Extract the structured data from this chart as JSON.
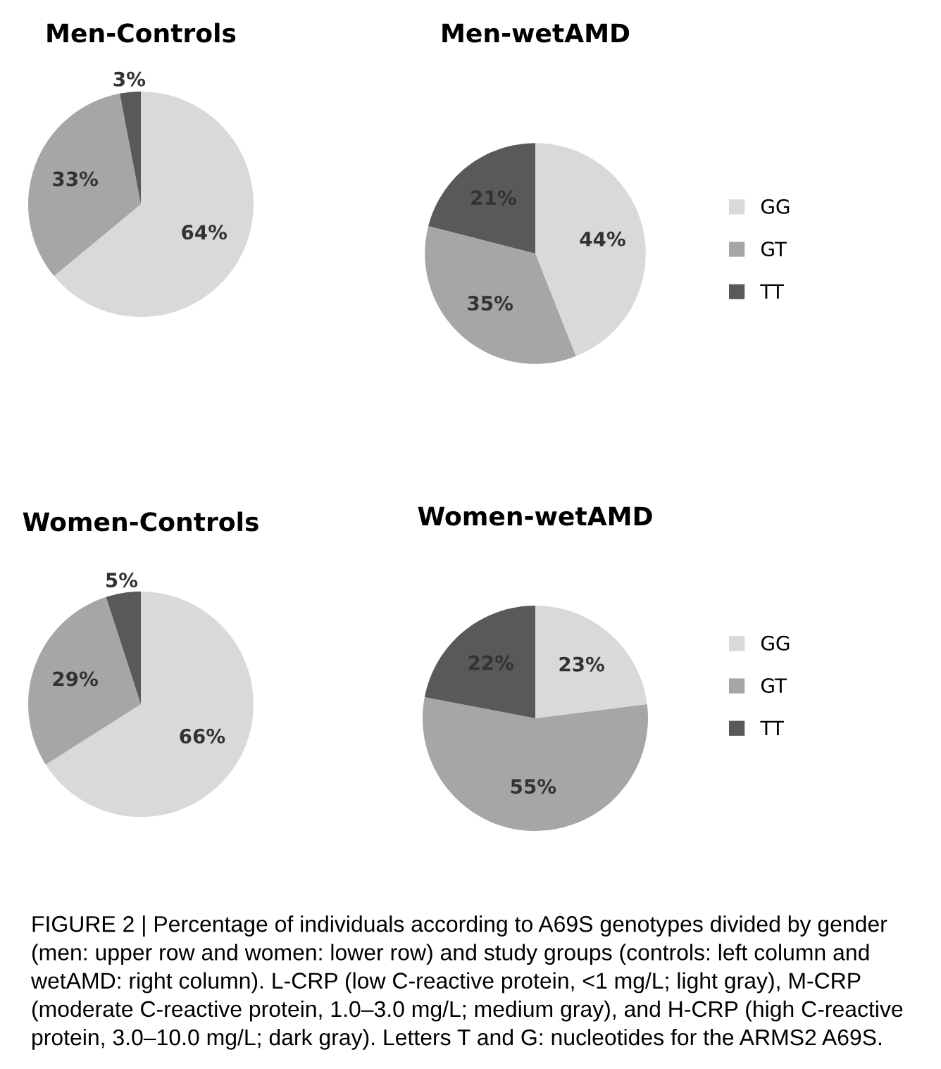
{
  "chart_data": [
    {
      "type": "pie",
      "title": "Men-Controls",
      "categories": [
        null,
        null,
        null
      ],
      "values": [
        64,
        33,
        3
      ],
      "colors": [
        "#d9d9d9",
        "#a6a6a6",
        "#595959"
      ],
      "value_labels": [
        "64%",
        "33%",
        "3%"
      ]
    },
    {
      "type": "pie",
      "title": "Men-wetAMD",
      "categories": [
        "GG",
        "GT",
        "TT"
      ],
      "values": [
        44,
        35,
        21
      ],
      "colors": [
        "#d9d9d9",
        "#a6a6a6",
        "#595959"
      ],
      "value_labels": [
        "44%",
        "35%",
        "21%"
      ],
      "legend": "right"
    },
    {
      "type": "pie",
      "title": "Women-Controls",
      "categories": [
        null,
        null,
        null
      ],
      "values": [
        66,
        29,
        5
      ],
      "colors": [
        "#d9d9d9",
        "#a6a6a6",
        "#595959"
      ],
      "value_labels": [
        "66%",
        "29%",
        "5%"
      ]
    },
    {
      "type": "pie",
      "title": "Women-wetAMD",
      "categories": [
        "GG",
        "GT",
        "TT"
      ],
      "values": [
        23,
        55,
        22
      ],
      "colors": [
        "#d9d9d9",
        "#a6a6a6",
        "#595959"
      ],
      "value_labels": [
        "23%",
        "55%",
        "22%"
      ],
      "legend": "right",
      "annotations": [
        "FIGURE 2 | Percentage of individuals according to A69S genotypes divided by gender (men: upper row and women: lower row) and study groups (controls: left column and wetAMD: right column). L-CRP (low C-reactive protein, <1 mg/L; light gray), M-CRP (moderate C-reactive protein, 1.0–3.0 mg/L; medium gray), and H-CRP (high C-reactive protein, 3.0–10.0 mg/L; dark gray). Letters T and G: nucleotides for the ARMS2 A69S."
      ]
    }
  ]
}
